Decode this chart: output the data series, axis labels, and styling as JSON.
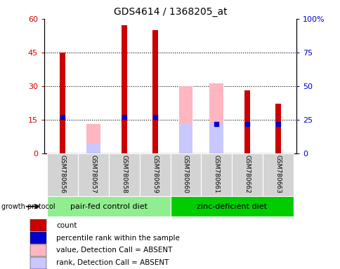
{
  "title": "GDS4614 / 1368205_at",
  "samples": [
    "GSM780656",
    "GSM780657",
    "GSM780658",
    "GSM780659",
    "GSM780660",
    "GSM780661",
    "GSM780662",
    "GSM780663"
  ],
  "count_values": [
    45,
    0,
    57,
    55,
    0,
    0,
    28,
    22
  ],
  "rank_pct_values": [
    27,
    0,
    27,
    27,
    0,
    22,
    22,
    22
  ],
  "absent_value_pct": [
    0,
    22,
    0,
    0,
    50,
    52,
    0,
    0
  ],
  "absent_rank_pct": [
    0,
    8,
    0,
    0,
    22,
    22,
    0,
    0
  ],
  "count_color": "#CC0000",
  "rank_color": "#0000CC",
  "absent_value_color": "#FFB6C1",
  "absent_rank_color": "#C8C8FF",
  "group1_label": "pair-fed control diet",
  "group2_label": "zinc-deficient diet",
  "group1_color": "#90EE90",
  "group2_color": "#00CC00",
  "ylim_left": [
    0,
    60
  ],
  "ylim_right": [
    0,
    100
  ],
  "yticks_left": [
    0,
    15,
    30,
    45,
    60
  ],
  "yticks_right": [
    0,
    25,
    50,
    75,
    100
  ],
  "ytick_labels_left": [
    "0",
    "15",
    "30",
    "45",
    "60"
  ],
  "ytick_labels_right": [
    "0",
    "25",
    "50",
    "75",
    "100%"
  ],
  "protocol_label": "growth protocol",
  "legend_items": [
    {
      "label": "count",
      "color": "#CC0000"
    },
    {
      "label": "percentile rank within the sample",
      "color": "#0000CC"
    },
    {
      "label": "value, Detection Call = ABSENT",
      "color": "#FFB6C1"
    },
    {
      "label": "rank, Detection Call = ABSENT",
      "color": "#C8C8FF"
    }
  ]
}
